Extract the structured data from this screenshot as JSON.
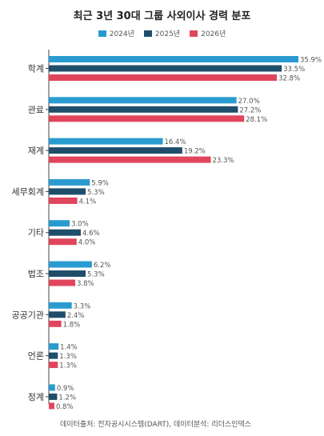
{
  "chart_data": {
    "type": "bar",
    "orientation": "horizontal",
    "title": "최근 3년 30대 그룹 사외이사 경력 분포",
    "categories": [
      "학계",
      "관료",
      "재계",
      "세무회계",
      "기타",
      "법조",
      "공공기관",
      "언론",
      "정계"
    ],
    "series": [
      {
        "name": "2024년",
        "color": "#2a9bd0",
        "values": [
          35.9,
          27.0,
          16.4,
          5.9,
          3.0,
          6.2,
          3.3,
          1.4,
          0.9
        ],
        "labels": [
          "35.9%",
          "27.0%",
          "16.4%",
          "5.9%",
          "3.0%",
          "6.2%",
          "3.3%",
          "1.4%",
          "0.9%"
        ]
      },
      {
        "name": "2025년",
        "color": "#1f4e6b",
        "values": [
          33.5,
          27.2,
          19.2,
          5.3,
          4.6,
          5.3,
          2.4,
          1.3,
          1.2
        ],
        "labels": [
          "33.5%",
          "27.2%",
          "19.2%",
          "5.3%",
          "4.6%",
          "5.3%",
          "2.4%",
          "1.3%",
          "1.2%"
        ]
      },
      {
        "name": "2026년",
        "color": "#e0455c",
        "values": [
          32.8,
          28.1,
          23.3,
          4.1,
          4.0,
          3.8,
          1.8,
          1.3,
          0.8
        ],
        "labels": [
          "32.8%",
          "28.1%",
          "23.3%",
          "4.1%",
          "4.0%",
          "3.8%",
          "1.8%",
          "1.3%",
          "0.8%"
        ]
      }
    ],
    "xlim": [
      0,
      35.9
    ],
    "legend_position": "top-center",
    "grid": false
  },
  "source_note": "데이터출처: 전자공시시스템(DART), 데이터분석: 리더스인덱스"
}
